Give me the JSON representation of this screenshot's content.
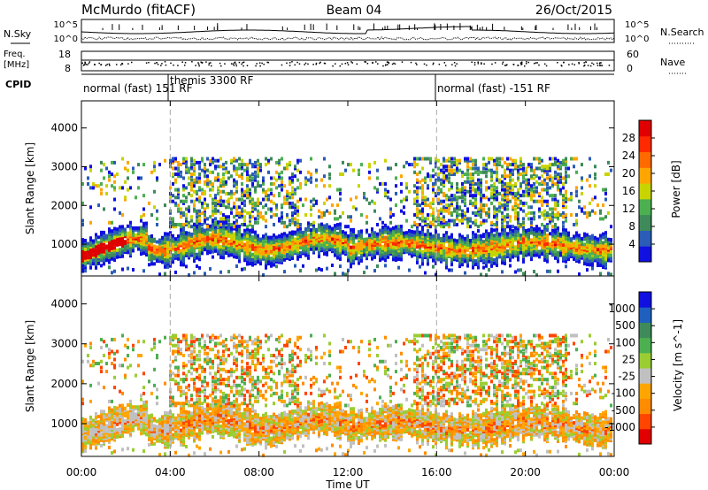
{
  "header": {
    "station": "McMurdo (fitACF)",
    "beam": "Beam 04",
    "date": "26/Oct/2015"
  },
  "noise_panel": {
    "left_label": "N.Sky",
    "right_label": "N.Search",
    "left_ticks": [
      "10^5",
      "10^0"
    ],
    "right_ticks": [
      "10^5",
      "10^0"
    ]
  },
  "freq_panel": {
    "left_label_1": "Freq.",
    "left_label_2": "[MHz]",
    "right_label": "Nave",
    "left_ticks": [
      "18",
      "8"
    ],
    "right_ticks": [
      "60",
      "0"
    ]
  },
  "cpid": {
    "label": "CPID",
    "segments": [
      "normal (fast) 151 RF",
      "themis 3300 RF",
      "normal (fast) -151 RF"
    ]
  },
  "colors": {
    "power": [
      "#1010e0",
      "#2a5cb8",
      "#3e8a5a",
      "#4caf50",
      "#c8d400",
      "#ffa500",
      "#ff6a00",
      "#ff2a00",
      "#e00000"
    ],
    "velocity": [
      "#e00000",
      "#ff4500",
      "#ff8c00",
      "#ffa500",
      "#c0c0c0",
      "#9acd32",
      "#4caf50",
      "#3e8a5a",
      "#1f5fbf",
      "#1010e0"
    ]
  },
  "chart_data": [
    {
      "type": "heatmap",
      "title": "Power",
      "xlabel": "Time UT",
      "ylabel": "Slant Range [km]",
      "x_ticks": [
        "00:00",
        "04:00",
        "08:00",
        "12:00",
        "16:00",
        "20:00",
        "00:00"
      ],
      "x_range_hours": [
        0,
        24
      ],
      "y_ticks": [
        1000,
        2000,
        3000,
        4000
      ],
      "ylim": [
        180,
        4700
      ],
      "colorbar_label": "Power [dB]",
      "colorbar_ticks": [
        "28",
        "24",
        "20",
        "16",
        "12",
        "8",
        "4"
      ],
      "colorbar_range": [
        0,
        30
      ],
      "dashed_time_markers_hours": [
        4.0,
        16.0
      ]
    },
    {
      "type": "heatmap",
      "title": "Velocity",
      "xlabel": "Time UT",
      "ylabel": "Slant Range [km]",
      "x_ticks": [
        "00:00",
        "04:00",
        "08:00",
        "12:00",
        "16:00",
        "20:00",
        "00:00"
      ],
      "x_range_hours": [
        0,
        24
      ],
      "y_ticks": [
        1000,
        2000,
        3000,
        4000
      ],
      "ylim": [
        180,
        4700
      ],
      "colorbar_label": "Velocity [m s^-1]",
      "colorbar_ticks": [
        "1000",
        "500",
        "100",
        "25",
        "-25",
        "-100",
        "-500",
        "-1000"
      ],
      "dashed_time_markers_hours": [
        4.0,
        16.0
      ]
    }
  ]
}
